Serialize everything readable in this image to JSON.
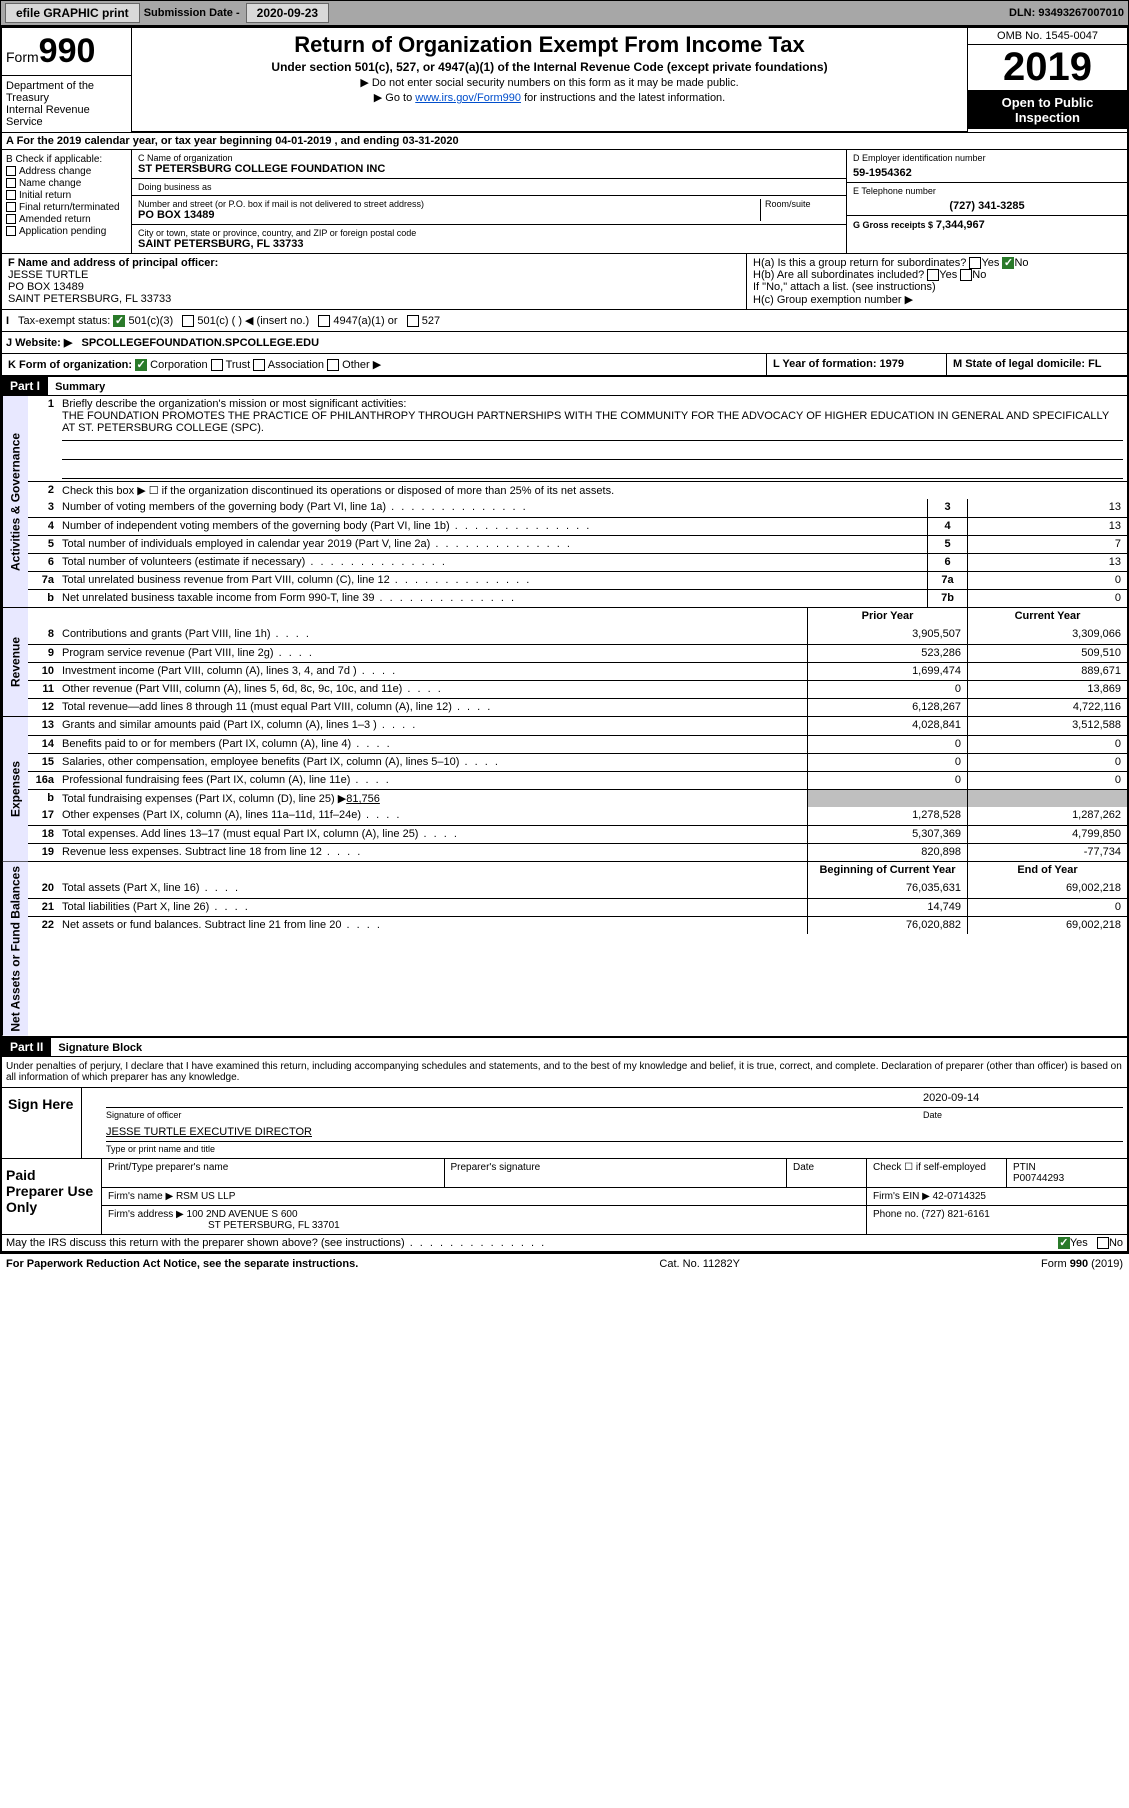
{
  "topbar": {
    "efile": "efile GRAPHIC print",
    "submission_label": "Submission Date - ",
    "submission_date": "2020-09-23",
    "dln": "DLN: 93493267007010"
  },
  "header": {
    "form_word": "Form",
    "form_num": "990",
    "dept1": "Department of the Treasury",
    "dept2": "Internal Revenue Service",
    "title": "Return of Organization Exempt From Income Tax",
    "subtitle": "Under section 501(c), 527, or 4947(a)(1) of the Internal Revenue Code (except private foundations)",
    "note1": "▶ Do not enter social security numbers on this form as it may be made public.",
    "note2_pre": "▶ Go to ",
    "note2_link": "www.irs.gov/Form990",
    "note2_post": " for instructions and the latest information.",
    "omb": "OMB No. 1545-0047",
    "year": "2019",
    "open1": "Open to Public",
    "open2": "Inspection"
  },
  "line_a": "A For the 2019 calendar year, or tax year beginning 04-01-2019   , and ending 03-31-2020",
  "section_b": {
    "label": "B Check if applicable:",
    "opts": [
      "Address change",
      "Name change",
      "Initial return",
      "Final return/terminated",
      "Amended return",
      "Application pending"
    ]
  },
  "section_c": {
    "name_lbl": "C Name of organization",
    "name": "ST PETERSBURG COLLEGE FOUNDATION INC",
    "dba_lbl": "Doing business as",
    "dba": "",
    "addr_lbl": "Number and street (or P.O. box if mail is not delivered to street address)",
    "room_lbl": "Room/suite",
    "addr": "PO BOX 13489",
    "city_lbl": "City or town, state or province, country, and ZIP or foreign postal code",
    "city": "SAINT PETERSBURG, FL  33733"
  },
  "section_d": {
    "lbl": "D Employer identification number",
    "val": "59-1954362"
  },
  "section_e": {
    "lbl": "E Telephone number",
    "val": "(727) 341-3285"
  },
  "section_g": {
    "lbl": "G Gross receipts $",
    "val": "7,344,967"
  },
  "section_f": {
    "lbl": "F  Name and address of principal officer:",
    "name": "JESSE TURTLE",
    "addr1": "PO BOX 13489",
    "addr2": "SAINT PETERSBURG, FL  33733"
  },
  "section_h": {
    "ha": "H(a)  Is this a group return for subordinates?",
    "hb": "H(b)  Are all subordinates included?",
    "hb_note": "If \"No,\" attach a list. (see instructions)",
    "hc": "H(c)  Group exemption number ▶"
  },
  "tax_status": {
    "lbl": "Tax-exempt status:",
    "o1": "501(c)(3)",
    "o2": "501(c) (  ) ◀ (insert no.)",
    "o3": "4947(a)(1) or",
    "o4": "527"
  },
  "website": {
    "lbl": "J   Website: ▶",
    "val": "SPCOLLEGEFOUNDATION.SPCOLLEGE.EDU"
  },
  "k_row": {
    "k": "K Form of organization:",
    "opts": [
      "Corporation",
      "Trust",
      "Association",
      "Other ▶"
    ],
    "l": "L Year of formation: 1979",
    "m": "M State of legal domicile: FL"
  },
  "part1": {
    "header": "Part I",
    "title": "Summary",
    "q1": "Briefly describe the organization's mission or most significant activities:",
    "q1_ans": "THE FOUNDATION PROMOTES THE PRACTICE OF PHILANTHROPY THROUGH PARTNERSHIPS WITH THE COMMUNITY FOR THE ADVOCACY OF HIGHER EDUCATION IN GENERAL AND SPECIFICALLY AT ST. PETERSBURG COLLEGE (SPC).",
    "q2": "Check this box ▶ ☐  if the organization discontinued its operations or disposed of more than 25% of its net assets.",
    "vert_ag": "Activities & Governance",
    "vert_rev": "Revenue",
    "vert_exp": "Expenses",
    "vert_na": "Net Assets or Fund Balances",
    "lines_ag": [
      {
        "n": "3",
        "d": "Number of voting members of the governing body (Part VI, line 1a)",
        "b": "3",
        "v": "13"
      },
      {
        "n": "4",
        "d": "Number of independent voting members of the governing body (Part VI, line 1b)",
        "b": "4",
        "v": "13"
      },
      {
        "n": "5",
        "d": "Total number of individuals employed in calendar year 2019 (Part V, line 2a)",
        "b": "5",
        "v": "7"
      },
      {
        "n": "6",
        "d": "Total number of volunteers (estimate if necessary)",
        "b": "6",
        "v": "13"
      },
      {
        "n": "7a",
        "d": "Total unrelated business revenue from Part VIII, column (C), line 12",
        "b": "7a",
        "v": "0"
      },
      {
        "n": "b",
        "d": "Net unrelated business taxable income from Form 990-T, line 39",
        "b": "7b",
        "v": "0"
      }
    ],
    "col_prior": "Prior Year",
    "col_current": "Current Year",
    "lines_rev": [
      {
        "n": "8",
        "d": "Contributions and grants (Part VIII, line 1h)",
        "p": "3,905,507",
        "c": "3,309,066"
      },
      {
        "n": "9",
        "d": "Program service revenue (Part VIII, line 2g)",
        "p": "523,286",
        "c": "509,510"
      },
      {
        "n": "10",
        "d": "Investment income (Part VIII, column (A), lines 3, 4, and 7d )",
        "p": "1,699,474",
        "c": "889,671"
      },
      {
        "n": "11",
        "d": "Other revenue (Part VIII, column (A), lines 5, 6d, 8c, 9c, 10c, and 11e)",
        "p": "0",
        "c": "13,869"
      },
      {
        "n": "12",
        "d": "Total revenue—add lines 8 through 11 (must equal Part VIII, column (A), line 12)",
        "p": "6,128,267",
        "c": "4,722,116"
      }
    ],
    "lines_exp": [
      {
        "n": "13",
        "d": "Grants and similar amounts paid (Part IX, column (A), lines 1–3 )",
        "p": "4,028,841",
        "c": "3,512,588"
      },
      {
        "n": "14",
        "d": "Benefits paid to or for members (Part IX, column (A), line 4)",
        "p": "0",
        "c": "0"
      },
      {
        "n": "15",
        "d": "Salaries, other compensation, employee benefits (Part IX, column (A), lines 5–10)",
        "p": "0",
        "c": "0"
      },
      {
        "n": "16a",
        "d": "Professional fundraising fees (Part IX, column (A), line 11e)",
        "p": "0",
        "c": "0"
      }
    ],
    "line_16b": {
      "n": "b",
      "d": "Total fundraising expenses (Part IX, column (D), line 25) ▶",
      "v": "81,756"
    },
    "lines_exp2": [
      {
        "n": "17",
        "d": "Other expenses (Part IX, column (A), lines 11a–11d, 11f–24e)",
        "p": "1,278,528",
        "c": "1,287,262"
      },
      {
        "n": "18",
        "d": "Total expenses. Add lines 13–17 (must equal Part IX, column (A), line 25)",
        "p": "5,307,369",
        "c": "4,799,850"
      },
      {
        "n": "19",
        "d": "Revenue less expenses. Subtract line 18 from line 12",
        "p": "820,898",
        "c": "-77,734"
      }
    ],
    "col_begin": "Beginning of Current Year",
    "col_end": "End of Year",
    "lines_na": [
      {
        "n": "20",
        "d": "Total assets (Part X, line 16)",
        "p": "76,035,631",
        "c": "69,002,218"
      },
      {
        "n": "21",
        "d": "Total liabilities (Part X, line 26)",
        "p": "14,749",
        "c": "0"
      },
      {
        "n": "22",
        "d": "Net assets or fund balances. Subtract line 21 from line 20",
        "p": "76,020,882",
        "c": "69,002,218"
      }
    ]
  },
  "part2": {
    "header": "Part II",
    "title": "Signature Block",
    "decl": "Under penalties of perjury, I declare that I have examined this return, including accompanying schedules and statements, and to the best of my knowledge and belief, it is true, correct, and complete. Declaration of preparer (other than officer) is based on all information of which preparer has any knowledge.",
    "sign_here": "Sign Here",
    "sig_officer": "Signature of officer",
    "sig_date": "Date",
    "sig_date_val": "2020-09-14",
    "officer_name": "JESSE TURTLE  EXECUTIVE DIRECTOR",
    "type_name": "Type or print name and title",
    "paid": "Paid Preparer Use Only",
    "p_name_lbl": "Print/Type preparer's name",
    "p_sig_lbl": "Preparer's signature",
    "p_date_lbl": "Date",
    "p_check": "Check ☐ if self-employed",
    "ptin_lbl": "PTIN",
    "ptin": "P00744293",
    "firm_name_lbl": "Firm's name    ▶",
    "firm_name": "RSM US LLP",
    "firm_ein_lbl": "Firm's EIN ▶",
    "firm_ein": "42-0714325",
    "firm_addr_lbl": "Firm's address ▶",
    "firm_addr1": "100 2ND AVENUE S 600",
    "firm_addr2": "ST PETERSBURG, FL  33701",
    "phone_lbl": "Phone no.",
    "phone": "(727) 821-6161",
    "discuss": "May the IRS discuss this return with the preparer shown above? (see instructions)"
  },
  "footer": {
    "left": "For Paperwork Reduction Act Notice, see the separate instructions.",
    "mid": "Cat. No. 11282Y",
    "right": "Form 990 (2019)"
  }
}
